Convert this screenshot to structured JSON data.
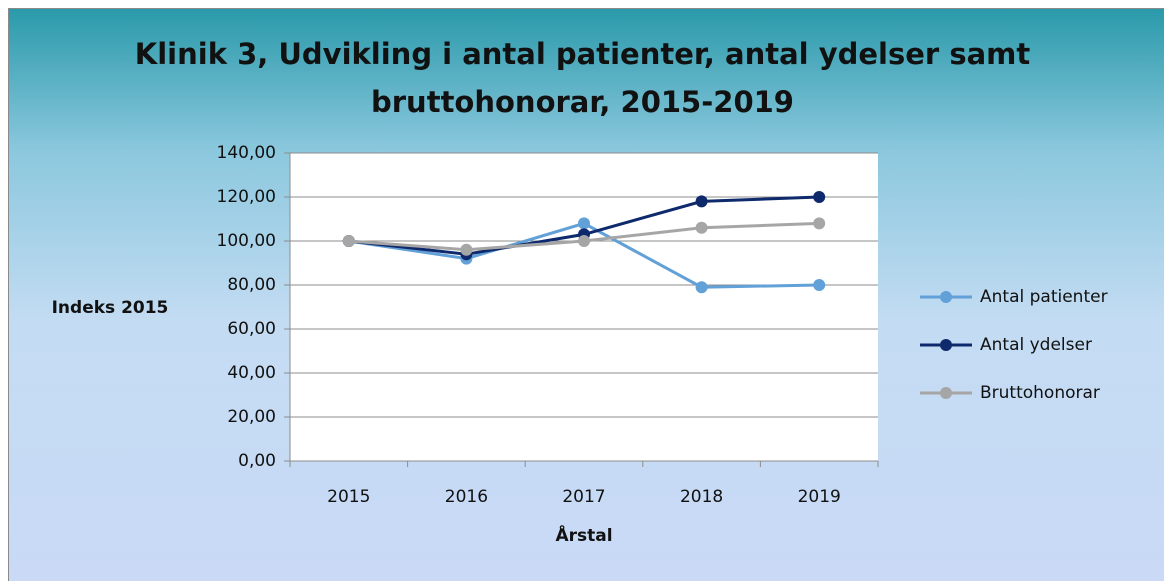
{
  "chart_data": {
    "type": "line",
    "title": "Klinik 3, Udvikling i antal patienter, antal ydelser samt bruttohonorar, 2015-2019",
    "xlabel": "Årstal",
    "ylabel": "Indeks 2015",
    "categories": [
      "2015",
      "2016",
      "2017",
      "2018",
      "2019"
    ],
    "series": [
      {
        "name": "Antal patienter",
        "color": "#62a0d8",
        "values": [
          100,
          92,
          108,
          79,
          80
        ]
      },
      {
        "name": "Antal ydelser",
        "color": "#0e2a6c",
        "values": [
          100,
          94,
          103,
          118,
          120
        ]
      },
      {
        "name": "Bruttohonorar",
        "color": "#a6a6a6",
        "values": [
          100,
          96,
          100,
          106,
          108
        ]
      }
    ],
    "ylim": [
      0,
      140
    ],
    "yticks": [
      {
        "value": 0,
        "label": "0,00"
      },
      {
        "value": 20,
        "label": "20,00"
      },
      {
        "value": 40,
        "label": "40,00"
      },
      {
        "value": 60,
        "label": "60,00"
      },
      {
        "value": 80,
        "label": "80,00"
      },
      {
        "value": 100,
        "label": "100,00"
      },
      {
        "value": 120,
        "label": "120,00"
      },
      {
        "value": 140,
        "label": "140,00"
      }
    ],
    "grid": true,
    "legend": "right"
  }
}
